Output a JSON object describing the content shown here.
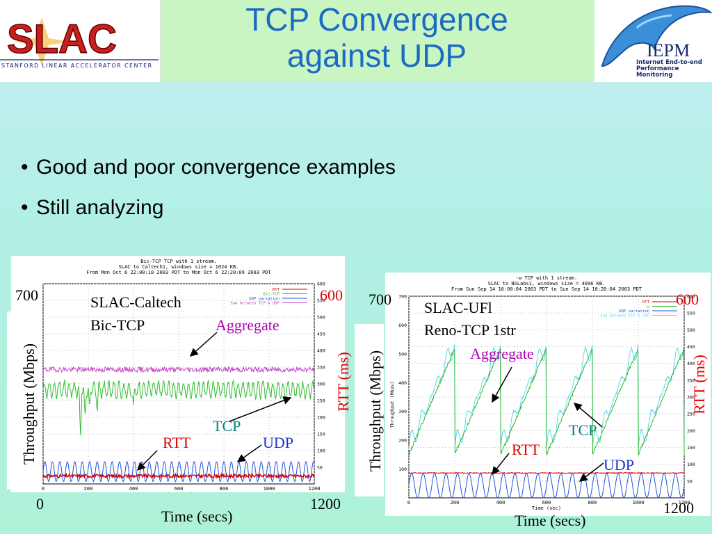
{
  "slide": {
    "title_line1": "TCP Convergence",
    "title_line2": "against UDP",
    "bullets": [
      "Good and poor convergence examples",
      "Still analyzing"
    ]
  },
  "logos": {
    "slac_text": "SLAC",
    "slac_subtitle": "STANFORD LINEAR ACCELERATOR CENTER",
    "iepm_text": "IEPM",
    "iepm_subtitle_line1": "Internet End-to-end",
    "iepm_subtitle_line2": "Performance Monitoring"
  },
  "colors": {
    "title": "#1c6ac2",
    "rtt": "#cc0000",
    "tcp": "#2dbb2d",
    "udp": "#2255dd",
    "aggregate": "#c040c8",
    "aggregate_right": "#5ad8f0",
    "annotation_tcp": "#008080",
    "annotation_udp": "#1a33cc",
    "annotation_red": "#e00000",
    "annotation_aggregate": "#b000b0"
  },
  "chart_data": [
    {
      "type": "line",
      "plot_title_lines": [
        "Bic-TCP TCP with 1 stream.",
        "SLAC to Caltech1, windows size = 1024 KB.",
        "From Mon Oct  6 22:00:10 2003 PDT to Mon Oct  6 22:20:09 2003 PDT"
      ],
      "legend": [
        "RTT",
        "Bic-TCP",
        "UDP variation",
        "Sum between TCP & UDP"
      ],
      "legend_position": "top-right",
      "xlabel_small": "Time (sec)",
      "xlabel": "Time (secs)",
      "ylabel": "Throughput (Mbps)",
      "y2label": "RTT (ms)",
      "x_ticks": [
        "0",
        "200",
        "400",
        "600",
        "800",
        "1000",
        "1200"
      ],
      "x_range": [
        0,
        1200
      ],
      "y_range": [
        0,
        700
      ],
      "y2_range": [
        0,
        600
      ],
      "y2_ticks": [
        "50",
        "100",
        "150",
        "200",
        "250",
        "300",
        "350",
        "400",
        "450",
        "500",
        "550",
        "600"
      ],
      "overlay_labels": {
        "x_min": "0",
        "x_max": "1200",
        "y_max": "700",
        "y2_max": "600",
        "site": "SLAC-Caltech",
        "algorithm": "Bic-TCP",
        "aggregate": "Aggregate",
        "tcp": "TCP",
        "udp": "UDP",
        "rtt": "RTT"
      },
      "series_summary": {
        "aggregate_mbps_mean": 400,
        "tcp_mbps_mean": 330,
        "udp_mbps_peak": 70,
        "udp_period_secs": 33,
        "rtt_ms_mean": 24
      }
    },
    {
      "type": "line",
      "plot_title_lines": [
        "-w TCP with 1 stream.",
        "SLAC to NSLabs1, windows size = 4096 KB.",
        "From Sun Sep 14 10:00:04 2003 PDT to Sun Sep 14 10:20:04 2003 PDT"
      ],
      "legend": [
        "RTT",
        "-w",
        "UDP variation",
        "Sum between TCP & UDP"
      ],
      "legend_position": "top-right",
      "xlabel_small": "Time (sec)",
      "xlabel": "Time (secs)",
      "ylabel": "Throughput (Mbps)",
      "y_small_label": "Throughput (Mbps)",
      "y2label": "RTT (ms)",
      "x_ticks": [
        "0",
        "200",
        "400",
        "600",
        "800",
        "1000",
        "1200"
      ],
      "y_ticks": [
        "100",
        "200",
        "300",
        "400",
        "500",
        "600",
        "700"
      ],
      "x_range": [
        0,
        1200
      ],
      "y_range": [
        0,
        700
      ],
      "y2_range": [
        0,
        600
      ],
      "y2_ticks": [
        "50",
        "100",
        "150",
        "200",
        "250",
        "300",
        "350",
        "400",
        "450",
        "500",
        "550",
        "600"
      ],
      "overlay_labels": {
        "x_max": "1200",
        "y_max": "700",
        "y2_max": "600",
        "site": "SLAC-UFl",
        "algorithm": "Reno-TCP 1str",
        "aggregate": "Aggregate",
        "tcp": "TCP",
        "udp": "UDP",
        "rtt": "RTT"
      },
      "series_summary": {
        "sawtooth_period_secs": 200,
        "tcp_mbps_min": 150,
        "tcp_mbps_max": 520,
        "udp_mbps_peak": 85,
        "udp_period_secs": 50,
        "rtt_ms_mean": 74
      }
    }
  ]
}
